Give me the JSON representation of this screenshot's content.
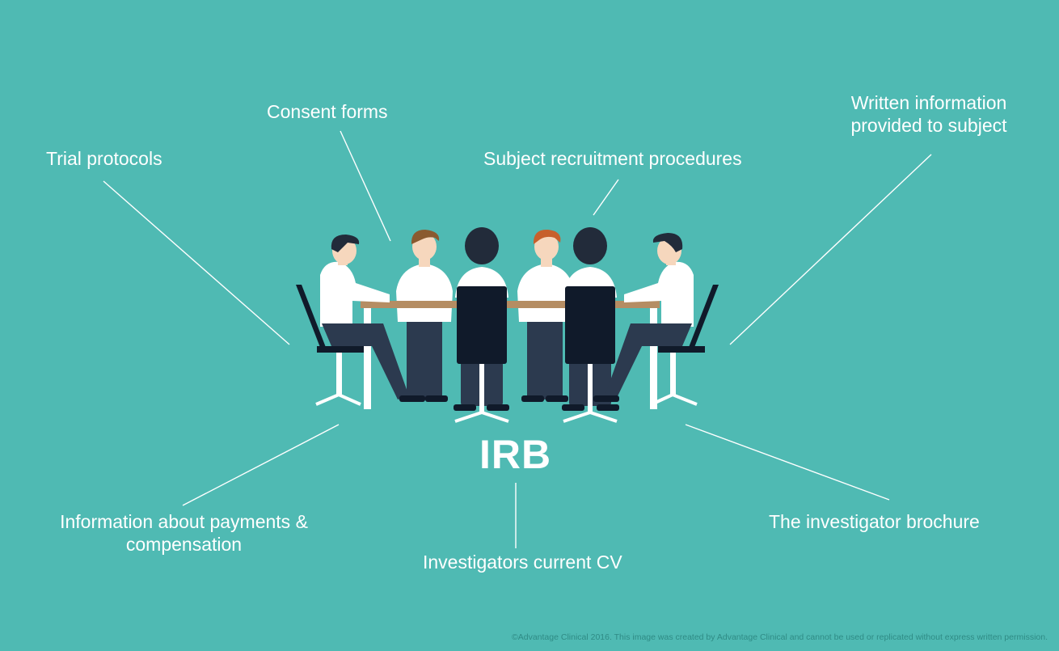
{
  "colors": {
    "background": "#4fbab3",
    "text": "#ffffff",
    "table_top": "#b58d63",
    "shirt": "#ffffff",
    "trousers": "#2c3a4f",
    "hair_dark": "#222b3a",
    "hair_brown": "#8a5a2f",
    "hair_auburn": "#c7602c",
    "chair_back": "#101a2a",
    "skin": "#f6d7bd"
  },
  "diagram": {
    "title": "IRB",
    "items": [
      {
        "id": "trial-protocols",
        "lines": [
          "Trial protocols"
        ]
      },
      {
        "id": "consent-forms",
        "lines": [
          "Consent forms"
        ]
      },
      {
        "id": "subject-recruitment",
        "lines": [
          "Subject recruitment procedures"
        ]
      },
      {
        "id": "written-information",
        "lines": [
          "Written information",
          "provided to subject"
        ]
      },
      {
        "id": "payments-compensation",
        "lines": [
          "Information about payments &",
          "compensation"
        ]
      },
      {
        "id": "investigators-cv",
        "lines": [
          "Investigators current CV"
        ]
      },
      {
        "id": "investigator-brochure",
        "lines": [
          "The investigator brochure"
        ]
      }
    ]
  },
  "footer": {
    "copyright": "©Advantage Clinical 2016. This image was created by Advantage Clinical and cannot be used or replicated without express written permission."
  }
}
